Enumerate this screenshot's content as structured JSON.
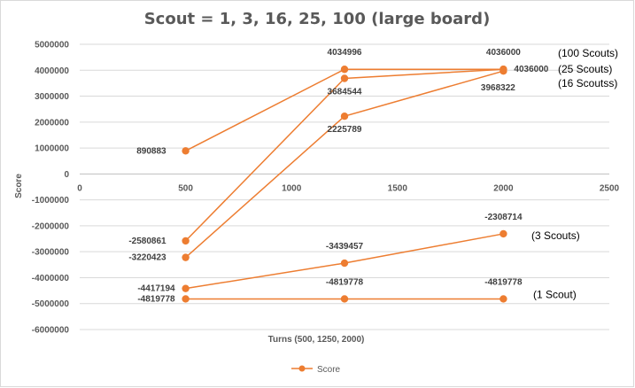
{
  "chart_data": {
    "type": "line",
    "title": "Scout = 1, 3, 16, 25, 100 (large board)",
    "xlabel": "Turns (500, 1250, 2000)",
    "ylabel": "Score",
    "xlim": [
      0,
      2500
    ],
    "ylim": [
      -6000000,
      5000000
    ],
    "x_ticks": [
      "0",
      "500",
      "1000",
      "1500",
      "2000",
      "2500"
    ],
    "y_ticks": [
      "5000000",
      "4000000",
      "3000000",
      "2000000",
      "1000000",
      "0",
      "-1000000",
      "-2000000",
      "-3000000",
      "-4000000",
      "-5000000",
      "-6000000"
    ],
    "grid": true,
    "legend_position": "bottom",
    "legend": [
      "Score"
    ],
    "color": "#ed7d31",
    "series": [
      {
        "points": [
          {
            "x": 500,
            "y": 890883,
            "label": "890883"
          },
          {
            "x": 1250,
            "y": 4034996,
            "label": "4034996"
          },
          {
            "x": 2000,
            "y": 4036000,
            "label": "4036000"
          }
        ]
      },
      {
        "points": [
          {
            "x": 500,
            "y": -2580861,
            "label": "-2580861"
          },
          {
            "x": 1250,
            "y": 3684544,
            "label": "3684544"
          },
          {
            "x": 2000,
            "y": 4036000,
            "label": "4036000"
          }
        ]
      },
      {
        "points": [
          {
            "x": 500,
            "y": -3220423,
            "label": "-3220423"
          },
          {
            "x": 1250,
            "y": 2225789,
            "label": "2225789"
          },
          {
            "x": 2000,
            "y": 3968322,
            "label": "3968322"
          }
        ]
      },
      {
        "points": [
          {
            "x": 500,
            "y": -4417194,
            "label": "-4417194"
          },
          {
            "x": 1250,
            "y": -3439457,
            "label": "-3439457"
          },
          {
            "x": 2000,
            "y": -2308714,
            "label": "-2308714"
          }
        ]
      },
      {
        "points": [
          {
            "x": 500,
            "y": -4819778,
            "label": "-4819778"
          },
          {
            "x": 1250,
            "y": -4819778,
            "label": "-4819778"
          },
          {
            "x": 2000,
            "y": -4819778,
            "label": "-4819778"
          }
        ]
      }
    ],
    "annotations": [
      "(100 Scouts)",
      "(25 Scouts)",
      "(16 Scoutss)",
      "(3 Scouts)",
      "(1 Scout)"
    ]
  }
}
